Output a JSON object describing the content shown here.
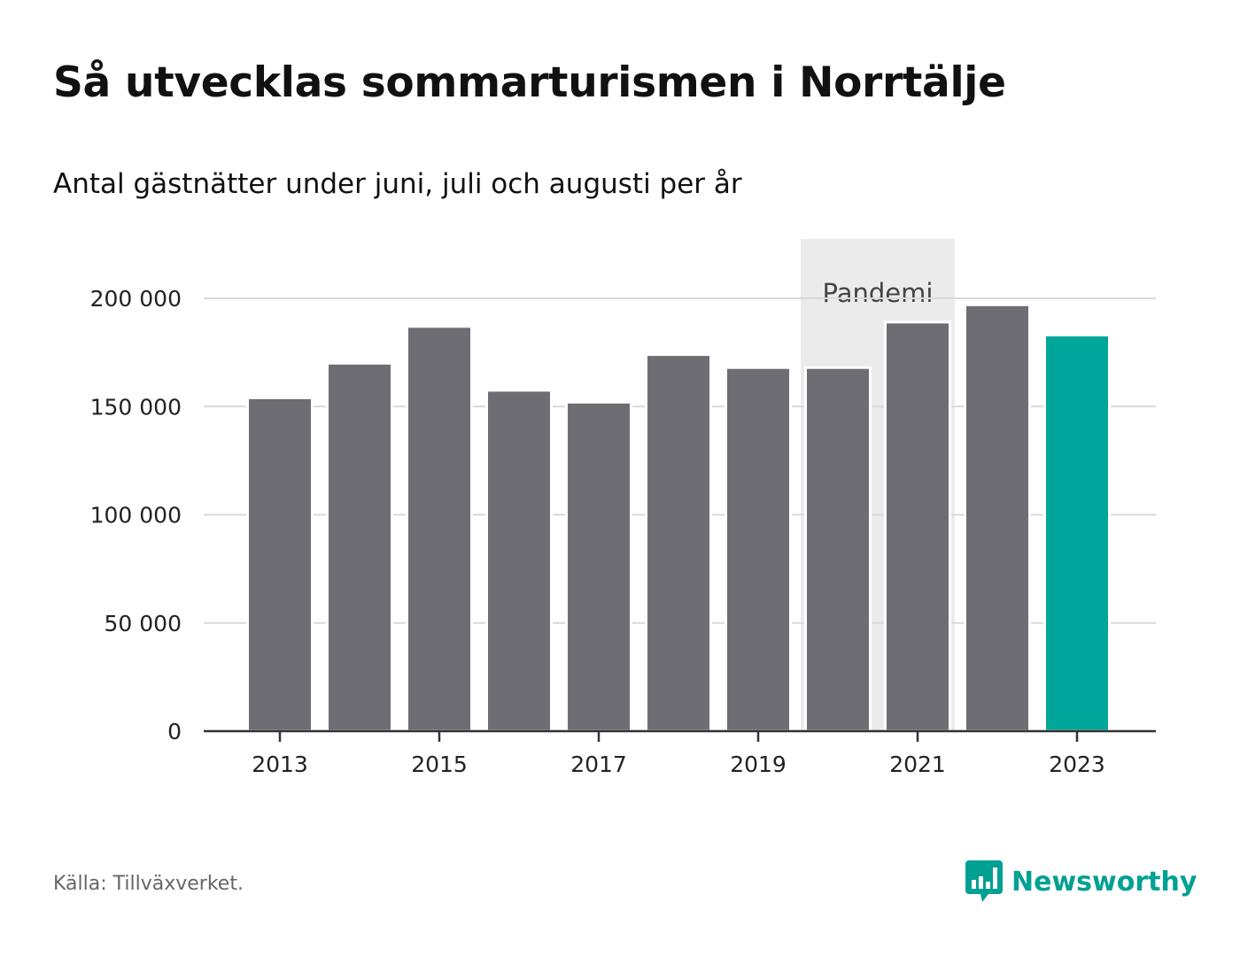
{
  "title": "Så utvecklas sommarturismen i Norrtälje",
  "subtitle": "Antal gästnätter under juni, juli och augusti per år",
  "source": "Källa: Tillväxverket.",
  "logo": {
    "text": "Newsworthy",
    "icon": "bar-chart-speech-bubble-icon"
  },
  "colors": {
    "bar": "#6e6d73",
    "highlight": "#00a69a",
    "grid": "#d9d9d9",
    "axis": "#333333",
    "band": "#ebebeb",
    "band_text": "#444444",
    "brand": "#00a094"
  },
  "chart_data": {
    "type": "bar",
    "categories": [
      "2013",
      "2014",
      "2015",
      "2016",
      "2017",
      "2018",
      "2019",
      "2020",
      "2021",
      "2022",
      "2023"
    ],
    "values": [
      154000,
      170000,
      187000,
      157500,
      152000,
      174000,
      168000,
      168000,
      189000,
      197000,
      183000
    ],
    "highlight_category": "2023",
    "x_tick_labels": [
      "2013",
      "2015",
      "2017",
      "2019",
      "2021",
      "2023"
    ],
    "y_ticks": [
      0,
      50000,
      100000,
      150000,
      200000
    ],
    "y_tick_labels": [
      "0",
      "50 000",
      "100 000",
      "150 000",
      "200 000"
    ],
    "ylim": [
      0,
      200000
    ],
    "grid": true,
    "xlabel": "",
    "ylabel": "",
    "annotation": {
      "label": "Pandemi",
      "categories": [
        "2020",
        "2021"
      ]
    }
  }
}
